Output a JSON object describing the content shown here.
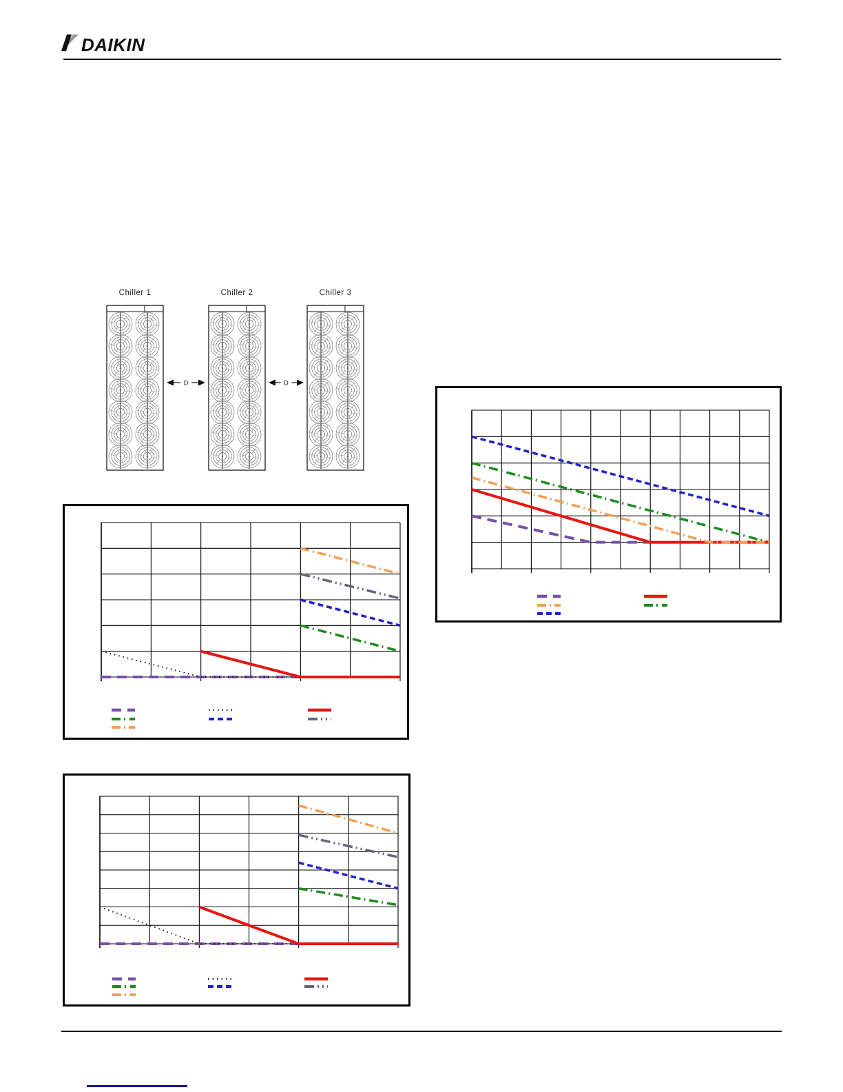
{
  "logo": {
    "text": "DAIKIN"
  },
  "diagram": {
    "chiller_labels": [
      "Chiller 1",
      "Chiller 2",
      "Chiller 3"
    ],
    "spacing_label": "D",
    "fan_rows_per_chiller": 7,
    "fan_columns_per_chiller": 2
  },
  "colors": {
    "page_background": "#FFFFFF",
    "rule_black": "#000000",
    "footnote_rule_navy": "#19198C",
    "grid_line": "#000000"
  },
  "series_styles": {
    "purple-long-dash": {
      "color": "#7A4FA8",
      "dash": "14 9",
      "width": 4
    },
    "black-dotted": {
      "color": "#1A1A1A",
      "dash": "1.5 5",
      "width": 2
    },
    "red-solid": {
      "color": "#E81512",
      "dash": "",
      "width": 4
    },
    "green-dash-dot": {
      "color": "#1E8B1E",
      "dash": "13 5 2 6",
      "width": 3.5
    },
    "blue-dashed": {
      "color": "#2222CC",
      "dash": "8 5",
      "width": 3.5
    },
    "gray-dash-dot-dot": {
      "color": "#66667E",
      "dash": "14 5 2 5 2 5",
      "width": 3.5
    },
    "orange-dash-dot": {
      "color": "#F0A057",
      "dash": "13 5 2 5",
      "width": 3.5
    }
  },
  "chart_data": [
    {
      "id": "chart-top-left",
      "type": "line",
      "title": "",
      "xlabel": "",
      "ylabel": "",
      "axis_tick_labels_visible": false,
      "grid": {
        "cols": 6,
        "rows": 6,
        "tick_every": 2,
        "grid_on": true
      },
      "units_note": "points are [column-gridline-index, row-gridline-index-from-top]",
      "series": [
        {
          "name": "orange-dash-dot",
          "points": [
            [
              4,
              1
            ],
            [
              6,
              2
            ]
          ]
        },
        {
          "name": "gray-dash-dot-dot",
          "points": [
            [
              4,
              2
            ],
            [
              6,
              2.95
            ]
          ]
        },
        {
          "name": "blue-dashed",
          "points": [
            [
              4,
              3
            ],
            [
              6,
              4
            ]
          ]
        },
        {
          "name": "green-dash-dot",
          "points": [
            [
              4,
              4
            ],
            [
              6,
              5
            ]
          ]
        },
        {
          "name": "purple-long-dash",
          "points": [
            [
              0,
              6
            ],
            [
              4,
              6
            ]
          ]
        },
        {
          "name": "black-dotted",
          "points": [
            [
              0,
              5
            ],
            [
              2,
              6
            ],
            [
              4,
              6
            ]
          ]
        },
        {
          "name": "red-solid",
          "points": [
            [
              2,
              5
            ],
            [
              4,
              6
            ],
            [
              6,
              6
            ]
          ]
        }
      ],
      "legend": {
        "position": "below",
        "cols": [
          68,
          209,
          353
        ],
        "rows": [
          296,
          309,
          321
        ],
        "swatch_len": 34,
        "entries": [
          {
            "col": 0,
            "row": 0,
            "series": "purple-long-dash"
          },
          {
            "col": 0,
            "row": 1,
            "series": "green-dash-dot"
          },
          {
            "col": 0,
            "row": 2,
            "series": "orange-dash-dot"
          },
          {
            "col": 1,
            "row": 0,
            "series": "black-dotted"
          },
          {
            "col": 1,
            "row": 1,
            "series": "blue-dashed"
          },
          {
            "col": 2,
            "row": 0,
            "series": "red-solid"
          },
          {
            "col": 2,
            "row": 1,
            "series": "gray-dash-dot-dot"
          }
        ]
      }
    },
    {
      "id": "chart-right",
      "type": "line",
      "title": "",
      "xlabel": "",
      "ylabel": "",
      "axis_tick_labels_visible": false,
      "grid": {
        "cols": 10,
        "rows": 6,
        "tick_every": 2,
        "grid_on": true
      },
      "units_note": "points are [column-gridline-index, row-gridline-index-from-top]",
      "series": [
        {
          "name": "blue-dashed",
          "points": [
            [
              0,
              1
            ],
            [
              10,
              4
            ]
          ]
        },
        {
          "name": "green-dash-dot",
          "points": [
            [
              0,
              2
            ],
            [
              10,
              5
            ]
          ]
        },
        {
          "name": "purple-long-dash",
          "points": [
            [
              0,
              4
            ],
            [
              4,
              5
            ],
            [
              6,
              5
            ]
          ]
        },
        {
          "name": "red-solid",
          "points": [
            [
              0,
              3
            ],
            [
              6,
              5
            ],
            [
              10,
              5
            ]
          ]
        },
        {
          "name": "orange-dash-dot",
          "points": [
            [
              0,
              2.55
            ],
            [
              8,
              5
            ],
            [
              10,
              5
            ]
          ]
        }
      ],
      "legend": {
        "position": "below",
        "cols": [
          145,
          300
        ],
        "rows": [
          302,
          315,
          327
        ],
        "swatch_len": 34,
        "entries": [
          {
            "col": 0,
            "row": 0,
            "series": "purple-long-dash"
          },
          {
            "col": 0,
            "row": 1,
            "series": "orange-dash-dot"
          },
          {
            "col": 0,
            "row": 2,
            "series": "blue-dashed"
          },
          {
            "col": 1,
            "row": 0,
            "series": "red-solid"
          },
          {
            "col": 1,
            "row": 1,
            "series": "green-dash-dot"
          }
        ]
      }
    },
    {
      "id": "chart-bottom-left",
      "type": "line",
      "title": "",
      "xlabel": "",
      "ylabel": "",
      "axis_tick_labels_visible": false,
      "grid": {
        "cols": 6,
        "rows": 8,
        "tick_every": 2,
        "grid_on": true
      },
      "units_note": "points are [column-gridline-index, row-gridline-index-from-top]",
      "series": [
        {
          "name": "orange-dash-dot",
          "points": [
            [
              4,
              0.5
            ],
            [
              6,
              2
            ]
          ]
        },
        {
          "name": "gray-dash-dot-dot",
          "points": [
            [
              4,
              2.1
            ],
            [
              6,
              3.3
            ]
          ]
        },
        {
          "name": "blue-dashed",
          "points": [
            [
              4,
              3.6
            ],
            [
              6,
              5
            ]
          ]
        },
        {
          "name": "green-dash-dot",
          "points": [
            [
              4,
              5
            ],
            [
              6,
              5.9
            ]
          ]
        },
        {
          "name": "purple-long-dash",
          "points": [
            [
              0,
              8
            ],
            [
              4,
              8
            ]
          ]
        },
        {
          "name": "black-dotted",
          "points": [
            [
              0,
              6
            ],
            [
              2,
              8
            ],
            [
              4,
              8
            ]
          ]
        },
        {
          "name": "red-solid",
          "points": [
            [
              2,
              6
            ],
            [
              4,
              8
            ],
            [
              6,
              8
            ]
          ]
        }
      ],
      "legend": {
        "position": "below",
        "cols": [
          69,
          208,
          348
        ],
        "rows": [
          295,
          306,
          318
        ],
        "swatch_len": 34,
        "entries": [
          {
            "col": 0,
            "row": 0,
            "series": "purple-long-dash"
          },
          {
            "col": 0,
            "row": 1,
            "series": "green-dash-dot"
          },
          {
            "col": 0,
            "row": 2,
            "series": "orange-dash-dot"
          },
          {
            "col": 1,
            "row": 0,
            "series": "black-dotted"
          },
          {
            "col": 1,
            "row": 1,
            "series": "blue-dashed"
          },
          {
            "col": 2,
            "row": 0,
            "series": "red-solid"
          },
          {
            "col": 2,
            "row": 1,
            "series": "gray-dash-dot-dot"
          }
        ]
      }
    }
  ]
}
